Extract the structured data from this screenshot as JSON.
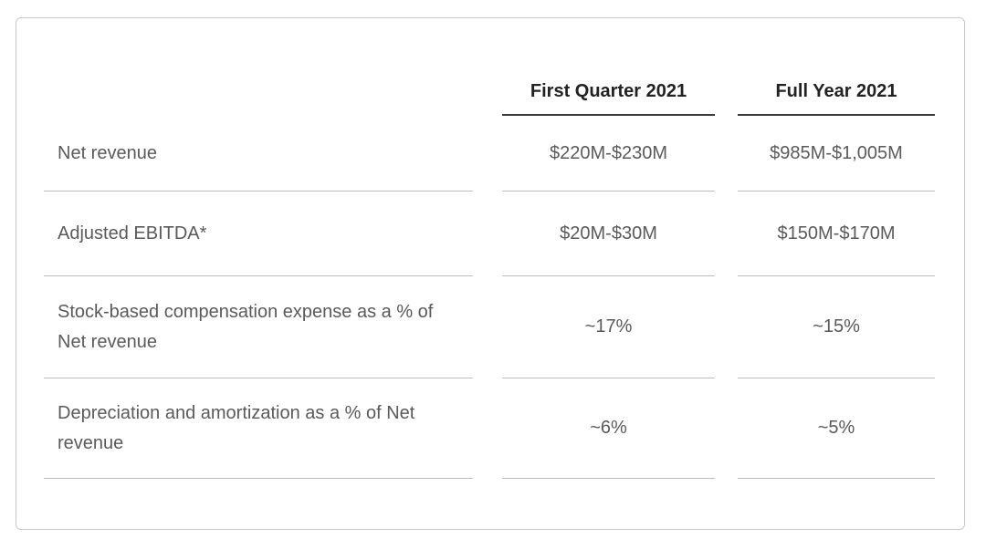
{
  "table": {
    "headers": [
      "First Quarter 2021",
      "Full Year 2021"
    ],
    "rows": [
      {
        "label": "Net revenue",
        "q1": "$220M-$230M",
        "fy": "$985M-$1,005M"
      },
      {
        "label": "Adjusted EBITDA*",
        "q1": "$20M-$30M",
        "fy": "$150M-$170M"
      },
      {
        "label": "Stock-based compensation expense as a % of Net revenue",
        "q1": "~17%",
        "fy": "~15%"
      },
      {
        "label": "Depreciation and amortization as a % of Net revenue",
        "q1": "~6%",
        "fy": "~5%"
      }
    ]
  }
}
